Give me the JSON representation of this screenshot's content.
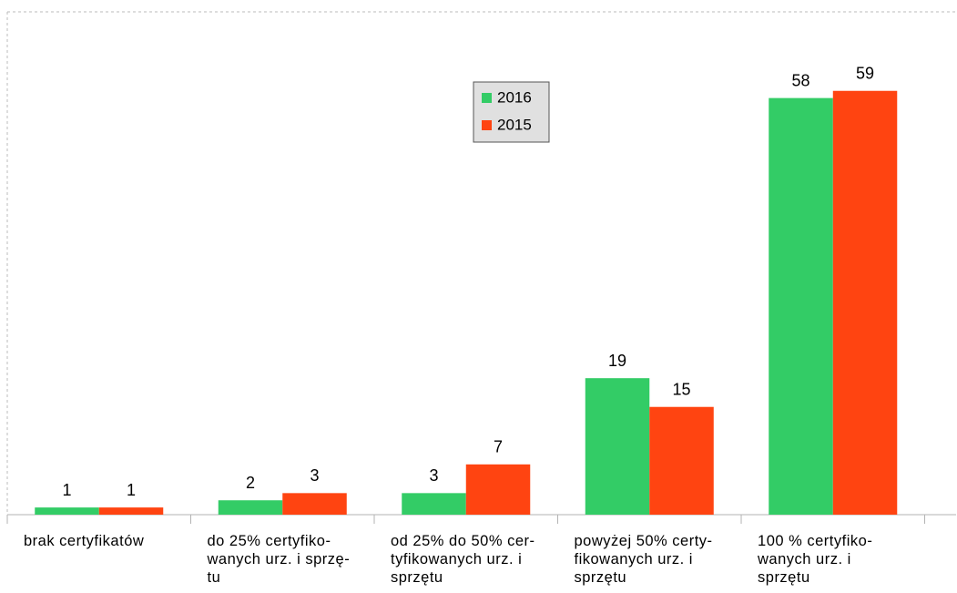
{
  "chart_data": {
    "type": "bar",
    "categories": [
      "brak certyfikatów",
      "do 25% certyfiko-\nwanych urz. i sprzę-\ntu",
      "od 25% do 50% cer-\ntyfikowanych urz. i\nsprzętu",
      "powyżej 50% certy-\nfikowanych  urz. i\nsprzętu",
      "100 % certyfiko-\nwanych  urz. i\nsprzętu"
    ],
    "series": [
      {
        "name": "2016",
        "color": "#33cc66",
        "values": [
          1,
          2,
          3,
          19,
          58
        ]
      },
      {
        "name": "2015",
        "color": "#ff4411",
        "values": [
          1,
          3,
          7,
          15,
          59
        ]
      }
    ],
    "ylim": [
      0,
      70
    ],
    "grid": false,
    "legend": "top-center"
  }
}
